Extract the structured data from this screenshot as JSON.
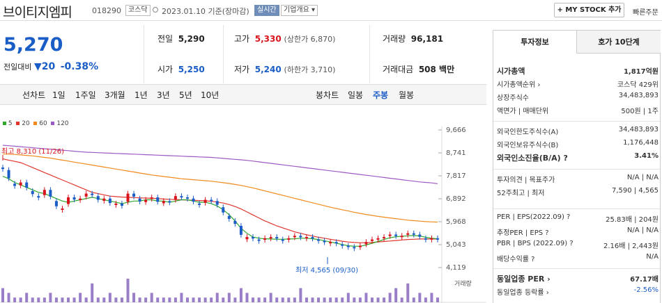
{
  "header": {
    "name": "브이티지엠피",
    "code": "018290",
    "market": "코스닥",
    "date_text": "2023.01.10  기준(장마감)",
    "realtime": "실시간",
    "company_info": "기업개요 ▾",
    "mystock_button": "+ MY STOCK 추가",
    "quick_button": "빠른주문"
  },
  "price": {
    "current": "5,270",
    "change_label": "전일대비",
    "change_arrow": "▼",
    "change_value": "20",
    "change_pct": "-0.38%"
  },
  "summary": {
    "prev_label": "전일",
    "prev": "5,290",
    "high_label": "고가",
    "high": "5,330",
    "upper_limit": "(상한가 6,870)",
    "volume_label": "거래량",
    "volume": "96,181",
    "open_label": "시가",
    "open": "5,250",
    "low_label": "저가",
    "low": "5,240",
    "lower_limit": "(하한가 3,710)",
    "value_label": "거래대금",
    "value": "508 백만"
  },
  "chart_tabs": {
    "line_label": "선차트",
    "line_periods": [
      "1일",
      "1주일",
      "3개월",
      "1년",
      "3년",
      "5년",
      "10년"
    ],
    "candle_label": "봉차트",
    "candle_periods": [
      "일봉",
      "주봉",
      "월봉"
    ],
    "candle_selected": "주봉"
  },
  "chart_data": {
    "type": "line",
    "ma_legend": [
      {
        "name": "5",
        "color": "#2ea82a"
      },
      {
        "name": "20",
        "color": "#e0352d"
      },
      {
        "name": "60",
        "color": "#f08a1c"
      },
      {
        "name": "120",
        "color": "#9b59c4"
      }
    ],
    "y_ticks": [
      "9,666",
      "8,741",
      "7,817",
      "6,892",
      "5,968",
      "5,043",
      "4,119"
    ],
    "ylim": [
      4119,
      9666
    ],
    "high_annotation": "최고 8,310 (11/26)",
    "low_annotation": "최저 4,565 (09/30)",
    "volume_label": "거래량",
    "candles": [
      8050,
      7500,
      7350,
      7550,
      7200,
      7000,
      6900,
      7250,
      6800,
      6450,
      6500,
      6950,
      6800,
      6900,
      7100,
      7000,
      6750,
      6900,
      6600,
      6700,
      6550,
      7100,
      6900,
      6700,
      6850,
      6950,
      6650,
      6800,
      6750,
      7000,
      6950,
      6900,
      6700,
      6650,
      6850,
      6800,
      6550,
      6200,
      6000,
      5800,
      5200,
      5350,
      5250,
      5200,
      5300,
      5350,
      5250,
      5200,
      5300,
      5400,
      5300,
      5350,
      5250,
      5200,
      5100,
      5150,
      5050,
      5000,
      4950,
      4900,
      5000,
      5150,
      5250,
      5300,
      5350,
      5450,
      5350,
      5400,
      5500,
      5450,
      5300,
      5250,
      5300,
      5270
    ],
    "ma5": [
      7800,
      7700,
      7550,
      7450,
      7350,
      7250,
      7150,
      7100,
      7000,
      6900,
      6800,
      6750,
      6800,
      6850,
      6900,
      6950,
      6900,
      6850,
      6800,
      6750,
      6700,
      6750,
      6800,
      6800,
      6850,
      6850,
      6800,
      6800,
      6750,
      6800,
      6850,
      6850,
      6800,
      6750,
      6750,
      6700,
      6600,
      6450,
      6250,
      6000,
      5700,
      5500,
      5350,
      5300,
      5280,
      5270,
      5260,
      5260,
      5270,
      5280,
      5300,
      5300,
      5280,
      5250,
      5200,
      5150,
      5100,
      5050,
      5000,
      4980,
      4980,
      5030,
      5100,
      5170,
      5250,
      5320,
      5360,
      5380,
      5400,
      5410,
      5390,
      5340,
      5300,
      5280
    ],
    "ma20": [
      8500,
      8450,
      8400,
      8350,
      8250,
      8150,
      8050,
      7950,
      7850,
      7750,
      7650,
      7550,
      7450,
      7350,
      7250,
      7150,
      7100,
      7050,
      7000,
      6980,
      6960,
      6950,
      6940,
      6930,
      6920,
      6910,
      6900,
      6880,
      6870,
      6860,
      6850,
      6840,
      6830,
      6820,
      6810,
      6790,
      6760,
      6720,
      6660,
      6580,
      6480,
      6360,
      6240,
      6120,
      6000,
      5900,
      5800,
      5720,
      5640,
      5560,
      5500,
      5440,
      5390,
      5340,
      5300,
      5260,
      5220,
      5180,
      5150,
      5130,
      5120,
      5120,
      5130,
      5150,
      5170,
      5190,
      5210,
      5230,
      5250,
      5260,
      5270,
      5270,
      5270,
      5270
    ],
    "ma60": [
      8700,
      8690,
      8680,
      8660,
      8640,
      8620,
      8590,
      8560,
      8530,
      8490,
      8450,
      8410,
      8370,
      8330,
      8290,
      8250,
      8210,
      8170,
      8130,
      8090,
      8050,
      8010,
      7970,
      7930,
      7890,
      7850,
      7820,
      7790,
      7760,
      7730,
      7700,
      7680,
      7660,
      7640,
      7620,
      7600,
      7570,
      7540,
      7510,
      7470,
      7430,
      7380,
      7330,
      7270,
      7210,
      7150,
      7090,
      7030,
      6970,
      6910,
      6850,
      6790,
      6730,
      6670,
      6610,
      6550,
      6500,
      6450,
      6400,
      6350,
      6300,
      6260,
      6220,
      6180,
      6150,
      6120,
      6090,
      6060,
      6030,
      6010,
      5990,
      5970,
      5960,
      5950
    ],
    "ma120": [
      9050,
      9030,
      9010,
      8990,
      8970,
      8950,
      8930,
      8910,
      8890,
      8870,
      8850,
      8830,
      8810,
      8790,
      8770,
      8760,
      8750,
      8740,
      8730,
      8720,
      8710,
      8700,
      8690,
      8680,
      8670,
      8660,
      8650,
      8640,
      8630,
      8620,
      8610,
      8600,
      8590,
      8580,
      8570,
      8560,
      8540,
      8520,
      8500,
      8480,
      8460,
      8440,
      8410,
      8380,
      8350,
      8320,
      8290,
      8260,
      8230,
      8200,
      8170,
      8140,
      8110,
      8080,
      8050,
      8020,
      7990,
      7960,
      7930,
      7900,
      7870,
      7840,
      7810,
      7780,
      7750,
      7720,
      7690,
      7660,
      7630,
      7600,
      7570,
      7550,
      7530,
      7500
    ],
    "volume": [
      3,
      2,
      1,
      1,
      2,
      1,
      1,
      1,
      2,
      1,
      1,
      1,
      1,
      2,
      1,
      4,
      1,
      1,
      2,
      1,
      1,
      5,
      2,
      1,
      1,
      2,
      1,
      1,
      1,
      1,
      2,
      1,
      1,
      1,
      1,
      1,
      2,
      1,
      2,
      1,
      3,
      2,
      1,
      1,
      1,
      2,
      1,
      1,
      1,
      1,
      3,
      1,
      1,
      1,
      1,
      1,
      1,
      1,
      2,
      1,
      1,
      2,
      1,
      1,
      1,
      2,
      3,
      1,
      4,
      1,
      2,
      1,
      2,
      1
    ]
  },
  "right_panel": {
    "tab1": "투자정보",
    "tab2": "호가 10단계",
    "rows1": [
      {
        "k": "시가총액",
        "v": "1,817억원",
        "bold": true
      },
      {
        "k": "시가총액순위 ›",
        "v": "코스닥  429위"
      },
      {
        "k": "상장주식수",
        "v": "34,483,893"
      },
      {
        "k": "액면가 | 매매단위",
        "v": "500원  |  1주"
      }
    ],
    "rows2": [
      {
        "k": "외국인한도주식수(A)",
        "v": "34,483,893"
      },
      {
        "k": "외국인보유주식수(B)",
        "v": "1,176,448"
      },
      {
        "k": "외국인소진율(B/A) ?",
        "v": "3.41%",
        "bold": true
      }
    ],
    "rows3": [
      {
        "k": "투자의견 | 목표주가",
        "v": "N/A  |  N/A"
      },
      {
        "k": "52주최고 | 최저",
        "v": "7,590  |  4,565"
      }
    ],
    "rows4": [
      {
        "k": "PER | EPS(2022.09) ?",
        "v": "25.83배  |  204원"
      },
      {
        "k": "추정PER | EPS ?",
        "v": "N/A  |  N/A"
      },
      {
        "k": "PBR | BPS (2022.09) ?",
        "v": "2.16배  |  2,443원"
      },
      {
        "k": "배당수익률 ?",
        "v": "N/A"
      }
    ],
    "rows5": [
      {
        "k": "동일업종 PER ›",
        "v": "67.17배",
        "bold": true
      },
      {
        "k": "동일업종 등락률 ›",
        "v": "-2.56%",
        "neg": true
      }
    ]
  }
}
